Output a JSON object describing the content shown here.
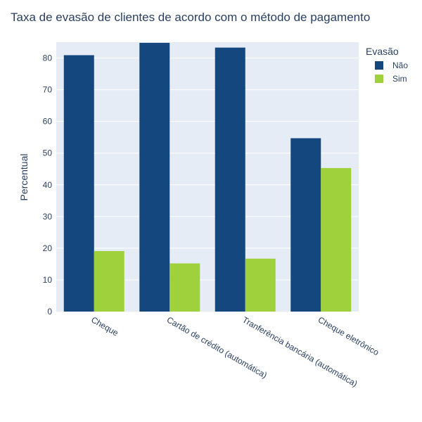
{
  "chart_data": {
    "type": "bar",
    "title": "Taxa de evasão de clientes de acordo com o método de pagamento",
    "xlabel": "",
    "ylabel": "Percentual",
    "categories": [
      "Cheque",
      "Cartão de crédito (automática)",
      "Tranferência bancária (automática)",
      "Cheque eletrônico"
    ],
    "series": [
      {
        "name": "Não",
        "values": [
          80.9,
          84.8,
          83.3,
          54.7
        ],
        "color": "#15477f"
      },
      {
        "name": "Sim",
        "values": [
          19.1,
          15.2,
          16.7,
          45.3
        ],
        "color": "#9ed13b"
      }
    ],
    "ylim": [
      0,
      85
    ],
    "yticks": [
      0,
      10,
      20,
      30,
      40,
      50,
      60,
      70,
      80
    ],
    "grid": true,
    "legend": {
      "title": "Evasão",
      "placement": "top-right"
    },
    "colors": {
      "plot_bg": "#e5ecf6",
      "grid": "#ffffff",
      "text": "#2a3f5f"
    }
  }
}
